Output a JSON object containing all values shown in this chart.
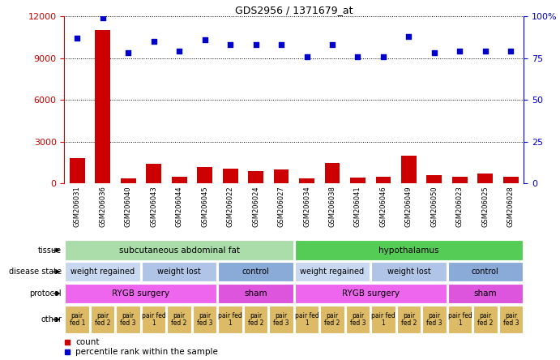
{
  "title": "GDS2956 / 1371679_at",
  "samples": [
    "GSM206031",
    "GSM206036",
    "GSM206040",
    "GSM206043",
    "GSM206044",
    "GSM206045",
    "GSM206022",
    "GSM206024",
    "GSM206027",
    "GSM206034",
    "GSM206038",
    "GSM206041",
    "GSM206046",
    "GSM206049",
    "GSM206050",
    "GSM206023",
    "GSM206025",
    "GSM206028"
  ],
  "counts": [
    1800,
    11000,
    400,
    1400,
    500,
    1200,
    1100,
    900,
    1000,
    350,
    1500,
    450,
    500,
    2000,
    600,
    500,
    700,
    500
  ],
  "percentile": [
    87,
    99,
    78,
    85,
    79,
    86,
    83,
    83,
    83,
    76,
    83,
    76,
    76,
    88,
    78,
    79,
    79,
    79
  ],
  "ylim_left": [
    0,
    12000
  ],
  "ylim_right": [
    0,
    100
  ],
  "yticks_left": [
    0,
    3000,
    6000,
    9000,
    12000
  ],
  "yticks_right": [
    0,
    25,
    50,
    75,
    100
  ],
  "ytick_labels_right": [
    "0",
    "25",
    "50",
    "75",
    "100%"
  ],
  "bar_color": "#cc0000",
  "scatter_color": "#0000cc",
  "tissue_labels": [
    {
      "text": "subcutaneous abdominal fat",
      "start": 0,
      "end": 9,
      "color": "#aaddaa"
    },
    {
      "text": "hypothalamus",
      "start": 9,
      "end": 18,
      "color": "#55cc55"
    }
  ],
  "disease_labels": [
    {
      "text": "weight regained",
      "start": 0,
      "end": 3,
      "color": "#c8d8f0"
    },
    {
      "text": "weight lost",
      "start": 3,
      "end": 6,
      "color": "#b0c4e8"
    },
    {
      "text": "control",
      "start": 6,
      "end": 9,
      "color": "#8aaad8"
    },
    {
      "text": "weight regained",
      "start": 9,
      "end": 12,
      "color": "#c8d8f0"
    },
    {
      "text": "weight lost",
      "start": 12,
      "end": 15,
      "color": "#b0c4e8"
    },
    {
      "text": "control",
      "start": 15,
      "end": 18,
      "color": "#8aaad8"
    }
  ],
  "protocol_labels": [
    {
      "text": "RYGB surgery",
      "start": 0,
      "end": 6,
      "color": "#ee66ee"
    },
    {
      "text": "sham",
      "start": 6,
      "end": 9,
      "color": "#dd55dd"
    },
    {
      "text": "RYGB surgery",
      "start": 9,
      "end": 15,
      "color": "#ee66ee"
    },
    {
      "text": "sham",
      "start": 15,
      "end": 18,
      "color": "#dd55dd"
    }
  ],
  "other_labels": [
    {
      "text": "pair\nfed 1",
      "start": 0,
      "end": 1,
      "color": "#ddbb66"
    },
    {
      "text": "pair\nfed 2",
      "start": 1,
      "end": 2,
      "color": "#ddbb66"
    },
    {
      "text": "pair\nfed 3",
      "start": 2,
      "end": 3,
      "color": "#ddbb66"
    },
    {
      "text": "pair fed\n1",
      "start": 3,
      "end": 4,
      "color": "#ddbb66"
    },
    {
      "text": "pair\nfed 2",
      "start": 4,
      "end": 5,
      "color": "#ddbb66"
    },
    {
      "text": "pair\nfed 3",
      "start": 5,
      "end": 6,
      "color": "#ddbb66"
    },
    {
      "text": "pair fed\n1",
      "start": 6,
      "end": 7,
      "color": "#ddbb66"
    },
    {
      "text": "pair\nfed 2",
      "start": 7,
      "end": 8,
      "color": "#ddbb66"
    },
    {
      "text": "pair\nfed 3",
      "start": 8,
      "end": 9,
      "color": "#ddbb66"
    },
    {
      "text": "pair fed\n1",
      "start": 9,
      "end": 10,
      "color": "#ddbb66"
    },
    {
      "text": "pair\nfed 2",
      "start": 10,
      "end": 11,
      "color": "#ddbb66"
    },
    {
      "text": "pair\nfed 3",
      "start": 11,
      "end": 12,
      "color": "#ddbb66"
    },
    {
      "text": "pair fed\n1",
      "start": 12,
      "end": 13,
      "color": "#ddbb66"
    },
    {
      "text": "pair\nfed 2",
      "start": 13,
      "end": 14,
      "color": "#ddbb66"
    },
    {
      "text": "pair\nfed 3",
      "start": 14,
      "end": 15,
      "color": "#ddbb66"
    },
    {
      "text": "pair fed\n1",
      "start": 15,
      "end": 16,
      "color": "#ddbb66"
    },
    {
      "text": "pair\nfed 2",
      "start": 16,
      "end": 17,
      "color": "#ddbb66"
    },
    {
      "text": "pair\nfed 3",
      "start": 17,
      "end": 18,
      "color": "#ddbb66"
    }
  ],
  "row_label_names": [
    "tissue",
    "disease state",
    "protocol",
    "other"
  ],
  "legend_items": [
    {
      "label": "count",
      "color": "#cc0000"
    },
    {
      "label": "percentile rank within the sample",
      "color": "#0000cc"
    }
  ]
}
